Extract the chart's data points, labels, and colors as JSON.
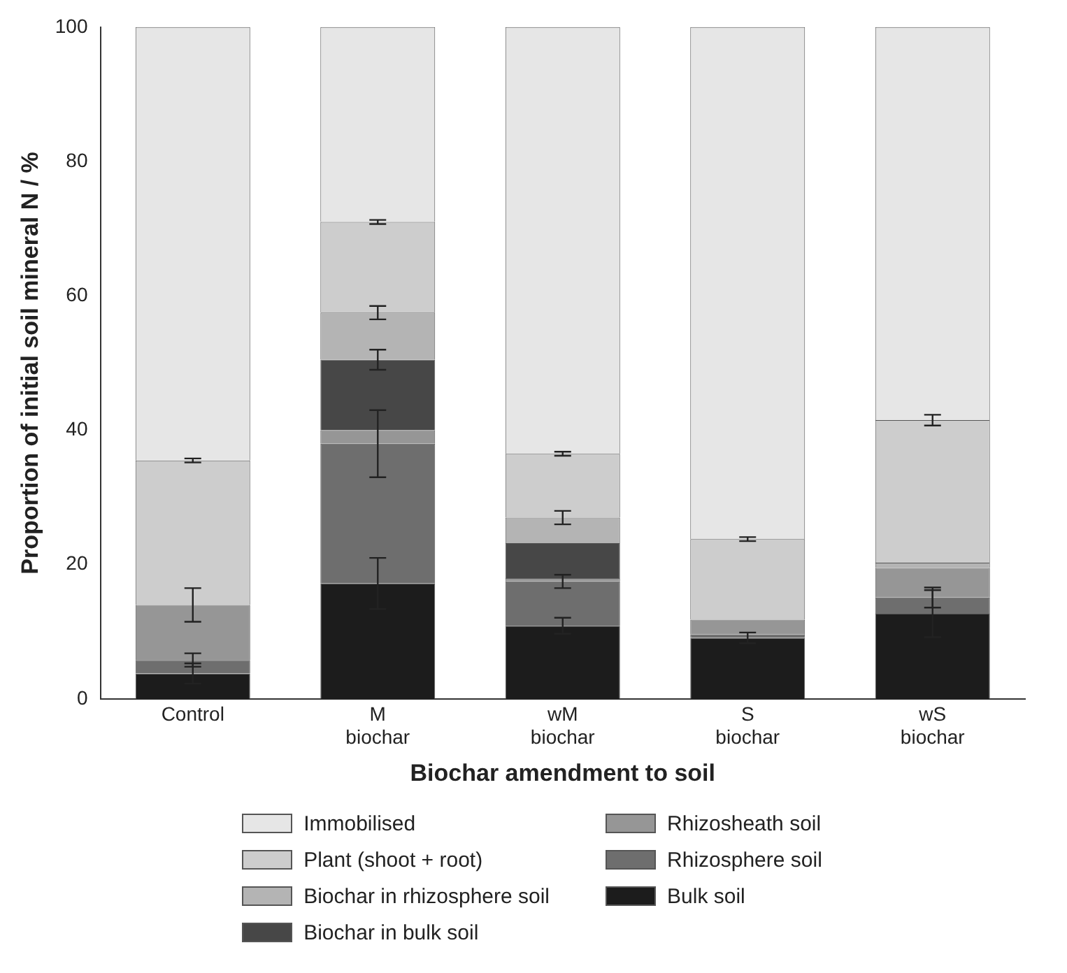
{
  "chart_data": {
    "type": "bar",
    "stacked": true,
    "xlabel": "Biochar amendment to soil",
    "ylabel": "Proportion of initial soil mineral N / %",
    "categories": [
      "Control",
      "M biochar",
      "wM biochar",
      "S biochar",
      "wS biochar"
    ],
    "ylim": [
      0,
      100
    ],
    "yticks": [
      0,
      20,
      40,
      60,
      80,
      100
    ],
    "grid": false,
    "legend": "bottom",
    "series": [
      {
        "name": "Bulk soil",
        "color": "#1c1c1c",
        "values": [
          3.8,
          17.2,
          10.9,
          9.1,
          12.7
        ],
        "errors": [
          1.5,
          3.8,
          1.2,
          0.8,
          3.5
        ]
      },
      {
        "name": "Rhizosphere soil",
        "color": "#6e6e6e",
        "values": [
          2,
          20.8,
          6.6,
          0.5,
          2.4
        ],
        "errors": [
          1,
          5,
          1,
          null,
          1.5
        ]
      },
      {
        "name": "Rhizosheath soil",
        "color": "#969696",
        "values": [
          8.2,
          2,
          0.5,
          2.2,
          4.4
        ],
        "errors": [
          2.5,
          null,
          null,
          null,
          null
        ]
      },
      {
        "name": "Biochar in bulk soil",
        "color": "#474747",
        "values": [
          0,
          10.5,
          5.2,
          0,
          0
        ],
        "errors": [
          null,
          1.5,
          null,
          null,
          null
        ]
      },
      {
        "name": "Biochar in rhizosphere soil",
        "color": "#b4b4b4",
        "values": [
          0,
          7,
          3.8,
          0,
          0.8
        ],
        "errors": [
          null,
          1,
          1,
          null,
          null
        ]
      },
      {
        "name": "Plant (shoot + root)",
        "color": "#cdcdcd",
        "values": [
          21.5,
          13.5,
          9.5,
          12,
          21.2
        ],
        "errors": [
          0.3,
          0.3,
          0.3,
          0.3,
          0.8
        ]
      },
      {
        "name": "Immobilised",
        "color": "#e6e6e6",
        "values": [
          64.5,
          29,
          63.5,
          76.2,
          58.5
        ]
      }
    ]
  }
}
